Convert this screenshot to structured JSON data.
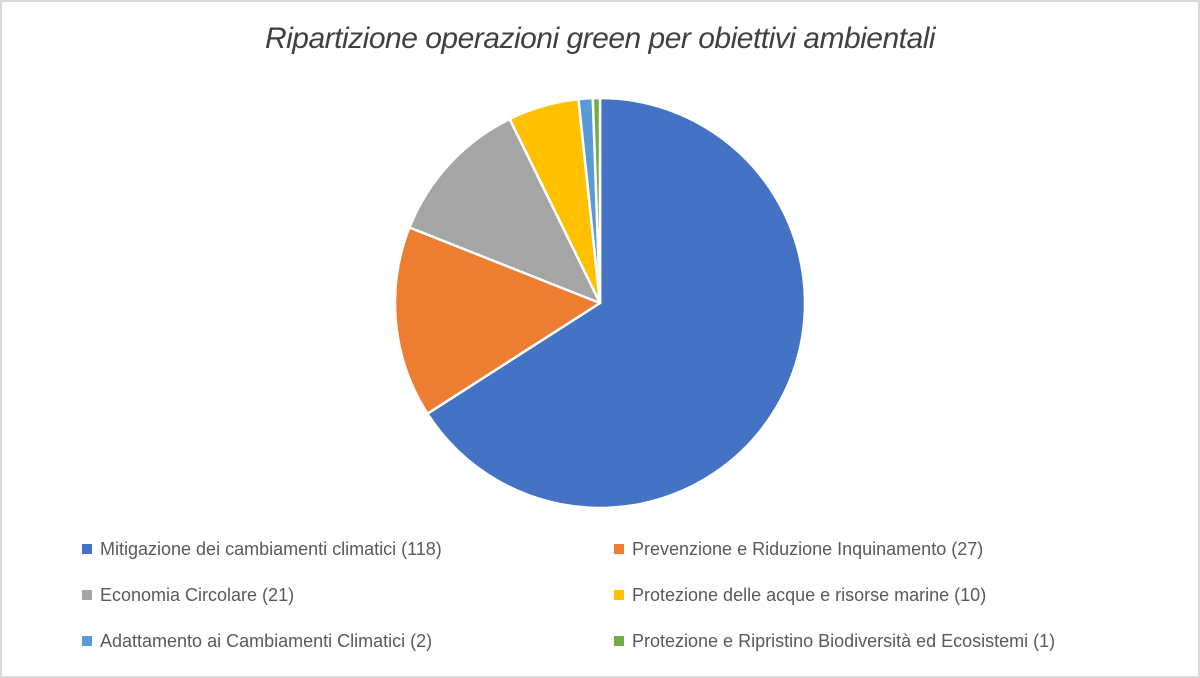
{
  "title": "Ripartizione operazioni green per obiettivi ambientali",
  "chart_data": {
    "type": "pie",
    "title": "Ripartizione operazioni green per obiettivi ambientali",
    "start_angle_deg": 0,
    "direction": "clockwise",
    "total": 179,
    "legend_position": "bottom",
    "slices": [
      {
        "label": "Mitigazione dei cambiamenti climatici",
        "value": 118,
        "color": "#4472C4"
      },
      {
        "label": "Prevenzione e Riduzione Inquinamento",
        "value": 27,
        "color": "#ED7D31"
      },
      {
        "label": "Economia Circolare",
        "value": 21,
        "color": "#A5A5A5"
      },
      {
        "label": "Protezione delle acque e risorse marine",
        "value": 10,
        "color": "#FFC000"
      },
      {
        "label": "Adattamento ai Cambiamenti Climatici",
        "value": 2,
        "color": "#5B9BD5"
      },
      {
        "label": "Protezione e Ripristino Biodiversità ed Ecosistemi",
        "value": 1,
        "color": "#70AD47"
      }
    ]
  },
  "legend": {
    "items": [
      {
        "label": "Mitigazione dei cambiamenti climatici (118)",
        "color": "#4472C4"
      },
      {
        "label": "Prevenzione e Riduzione Inquinamento (27)",
        "color": "#ED7D31"
      },
      {
        "label": "Economia Circolare (21)",
        "color": "#A5A5A5"
      },
      {
        "label": "Protezione delle acque e risorse marine (10)",
        "color": "#FFC000"
      },
      {
        "label": "Adattamento ai Cambiamenti Climatici (2)",
        "color": "#5B9BD5"
      },
      {
        "label": "Protezione e Ripristino Biodiversità ed Ecosistemi (1)",
        "color": "#70AD47"
      }
    ]
  },
  "colors": {
    "title_text": "#404040",
    "legend_text": "#595959",
    "frame_border": "#D9D9D9",
    "slice_border": "#FFFFFF"
  }
}
